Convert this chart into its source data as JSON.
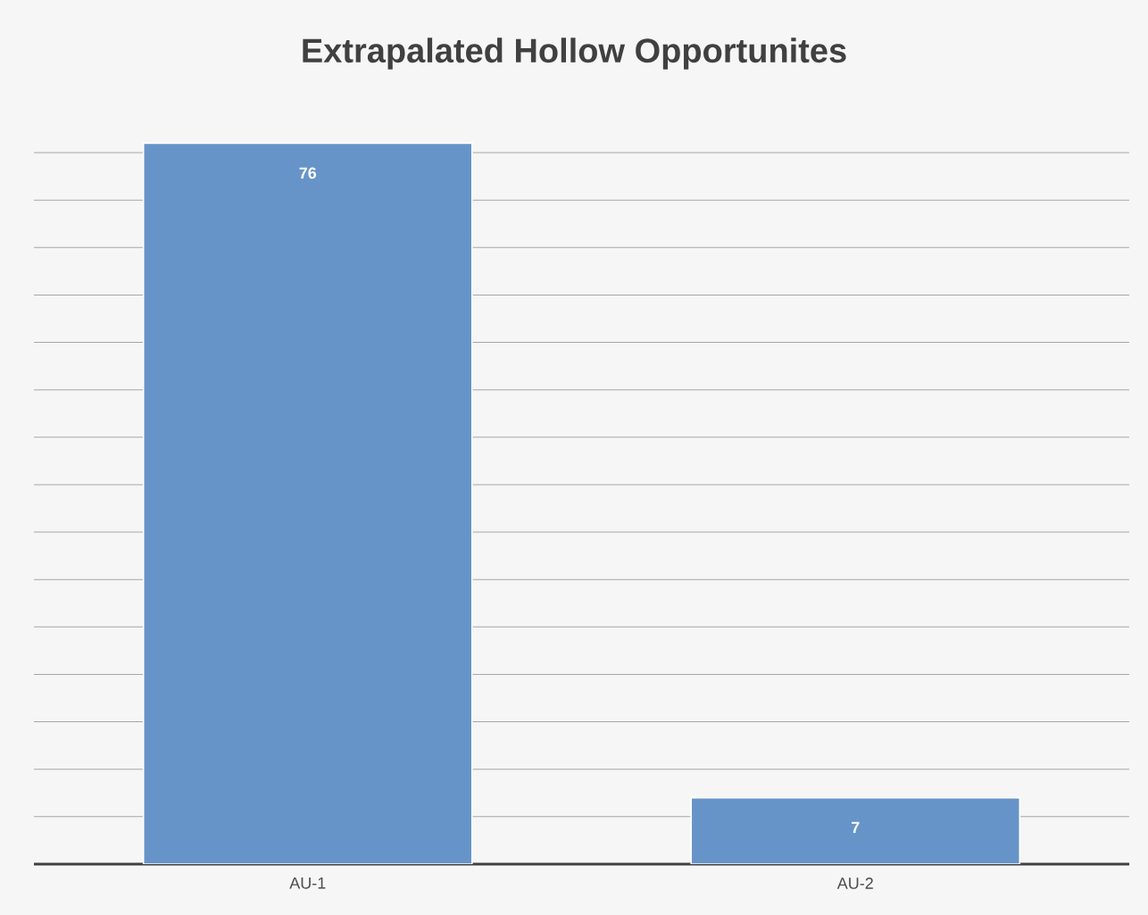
{
  "chart_data": {
    "type": "bar",
    "title": "Extrapalated Hollow Opportunites",
    "categories": [
      "AU-1",
      "AU-2"
    ],
    "values": [
      76,
      7
    ],
    "color": "#6794c8",
    "data_labels": true,
    "tick_labels": "x",
    "grid": "y"
  }
}
